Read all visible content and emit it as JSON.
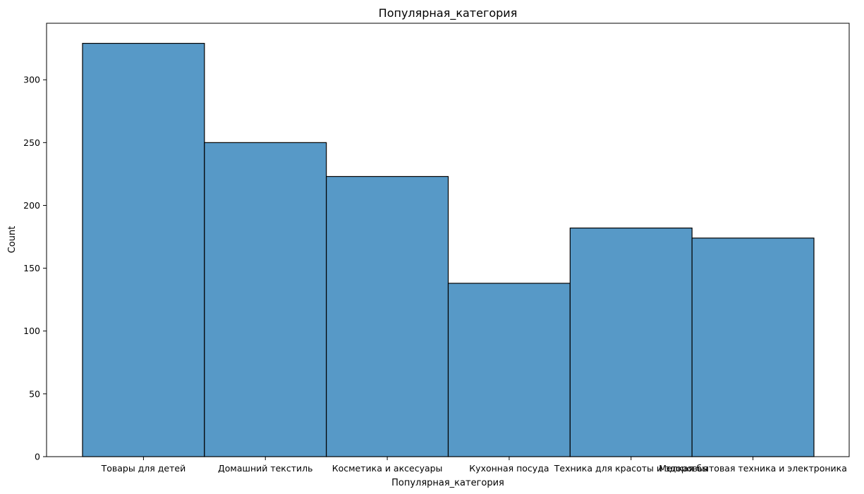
{
  "chart_data": {
    "type": "bar",
    "title": "Популярная_категория",
    "xlabel": "Популярная_категория",
    "ylabel": "Count",
    "categories": [
      "Товары для детей",
      "Домашний текстиль",
      "Косметика и аксесуары",
      "Кухонная посуда",
      "Техника для красоты и здоровья",
      "Мелкая бытовая техника и электроника"
    ],
    "values": [
      329,
      250,
      223,
      138,
      182,
      174
    ],
    "yticks": [
      "0",
      "50",
      "100",
      "150",
      "200",
      "250",
      "300"
    ],
    "ylim": [
      0,
      345
    ],
    "grid": false,
    "bar_color": "#5799c7",
    "edge_color": "#000000"
  }
}
